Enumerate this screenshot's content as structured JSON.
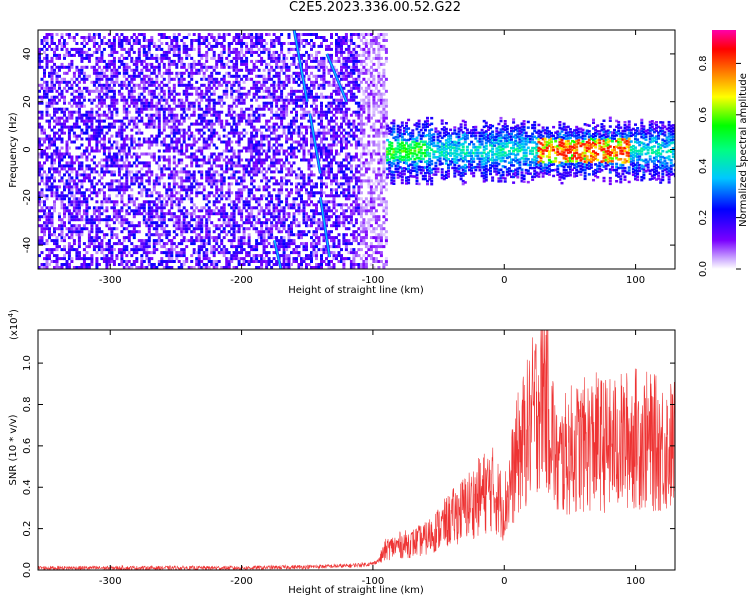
{
  "title": "C2E5.2023.336.00.52.G22",
  "chart_data": [
    {
      "type": "heatmap",
      "xlabel": "Height of straight line (km)",
      "ylabel": "Frequency (Hz)",
      "xlim": [
        -355,
        130
      ],
      "ylim": [
        -50,
        50
      ],
      "xticks": [
        -300,
        -200,
        -100,
        0,
        100
      ],
      "yticks": [
        -40,
        -20,
        0,
        20,
        40
      ],
      "colorbar": {
        "label": "Normalized spectral amplitude",
        "range": [
          0.0,
          0.93
        ],
        "ticks": [
          "0.0",
          "0.2",
          "0.4",
          "0.6",
          "0.8"
        ],
        "tick_values": [
          0.0,
          0.2,
          0.4,
          0.6,
          0.8
        ],
        "colormap": [
          "#ffffff",
          "#7a00ff",
          "#0000ff",
          "#00c8ff",
          "#00ff00",
          "#ffff00",
          "#ff8000",
          "#ff0000",
          "#ff00aa"
        ]
      },
      "regions": [
        {
          "x_range": [
            -355,
            -90
          ],
          "description_values": {
            "noise_amplitude": [
              0.05,
              0.25
            ]
          }
        },
        {
          "x_range": [
            -90,
            130
          ],
          "frequency_band": [
            -10,
            10
          ],
          "peak_amplitude": 0.9
        }
      ],
      "tracks": [
        {
          "x": [
            -160,
            -150
          ],
          "y": [
            50,
            20
          ]
        },
        {
          "x": [
            -148,
            -140
          ],
          "y": [
            15,
            -10
          ]
        },
        {
          "x": [
            -140,
            -133
          ],
          "y": [
            -20,
            -45
          ]
        },
        {
          "x": [
            -175,
            -170
          ],
          "y": [
            -38,
            -50
          ]
        },
        {
          "x": [
            -135,
            -120
          ],
          "y": [
            40,
            20
          ]
        }
      ]
    },
    {
      "type": "line",
      "xlabel": "Height of straight line (km)",
      "ylabel": "SNR (10 * v/v)",
      "yscale_note": "(x10",
      "yscale_exp": "4",
      "xlim": [
        -355,
        130
      ],
      "ylim": [
        0.0,
        1.16
      ],
      "xticks": [
        -300,
        -200,
        -100,
        0,
        100
      ],
      "yticks": [
        "0.0",
        "0.2",
        "0.4",
        "0.6",
        "0.8",
        "1.0"
      ],
      "ytick_values": [
        0.0,
        0.2,
        0.4,
        0.6,
        0.8,
        1.0
      ],
      "color": "#ee3333",
      "series": [
        {
          "x": [
            -355,
            -300,
            -250,
            -200,
            -150,
            -120,
            -100,
            -95,
            -90,
            -80,
            -70,
            -60,
            -50,
            -40,
            -30,
            -20,
            -10,
            0,
            10,
            20,
            25,
            30,
            35,
            40,
            50,
            60,
            70,
            80,
            90,
            100,
            110,
            120,
            130
          ],
          "y": [
            0.01,
            0.01,
            0.01,
            0.01,
            0.015,
            0.02,
            0.03,
            0.05,
            0.1,
            0.12,
            0.13,
            0.15,
            0.2,
            0.25,
            0.3,
            0.35,
            0.4,
            0.3,
            0.55,
            0.7,
            0.8,
            0.9,
            0.75,
            0.5,
            0.58,
            0.6,
            0.62,
            0.6,
            0.62,
            0.64,
            0.62,
            0.6,
            0.6
          ]
        }
      ]
    }
  ]
}
